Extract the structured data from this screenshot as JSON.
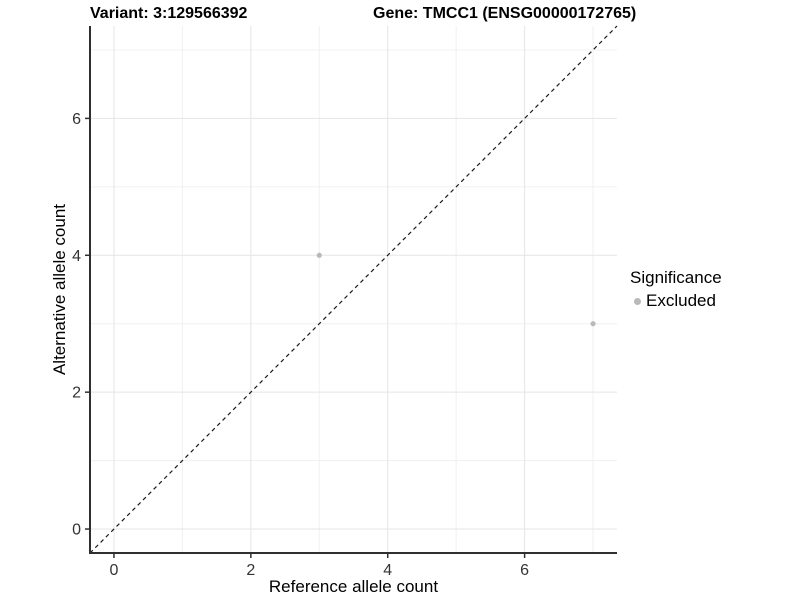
{
  "titles": {
    "left": "Variant: 3:129566392",
    "right": "Gene: TMCC1 (ENSG00000172765)"
  },
  "chart_data": {
    "type": "scatter",
    "title": "Variant: 3:129566392  /  Gene: TMCC1 (ENSG00000172765)",
    "xlabel": "Reference allele count",
    "ylabel": "Alternative allele count",
    "xlim": [
      -0.35,
      7.35
    ],
    "ylim": [
      -0.35,
      7.35
    ],
    "x_major_ticks": [
      0,
      2,
      4,
      6
    ],
    "y_major_ticks": [
      0,
      2,
      4,
      6
    ],
    "x_minor_ticks": [
      1,
      3,
      5,
      7
    ],
    "y_minor_ticks": [
      1,
      3,
      5,
      7
    ],
    "grid": true,
    "series": [
      {
        "name": "Excluded",
        "color": "#b9b9b9",
        "points": [
          {
            "x": 3,
            "y": 4
          },
          {
            "x": 7,
            "y": 3
          }
        ]
      }
    ],
    "reference_line": {
      "slope": 1,
      "intercept": 0,
      "linestyle": "dashed",
      "color": "#1a1a1a"
    },
    "legend": {
      "title": "Significance",
      "position": "right",
      "items": [
        {
          "label": "Excluded",
          "color": "#b9b9b9"
        }
      ]
    }
  },
  "colors": {
    "grid_major": "#e5e5e5",
    "grid_minor": "#f0f0f0",
    "axis_line": "#2f2f2f",
    "tick_label": "#333333",
    "point": "#b9b9b9"
  }
}
